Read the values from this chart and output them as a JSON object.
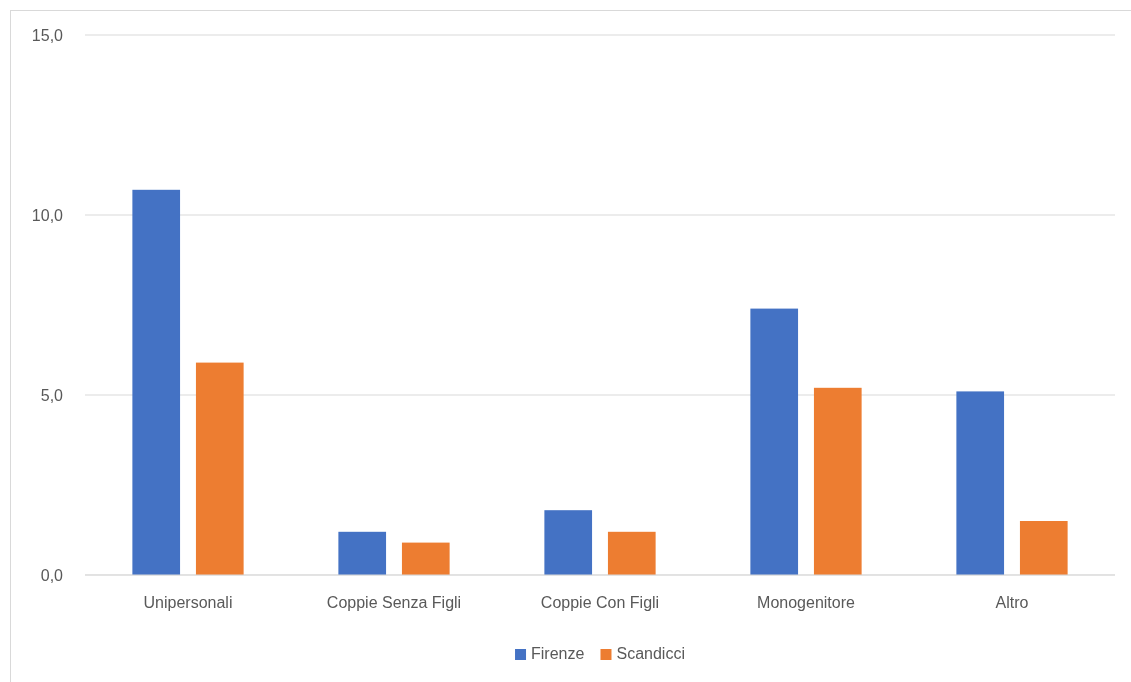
{
  "chart_data": {
    "type": "bar",
    "categories": [
      "Unipersonali",
      "Coppie Senza Figli",
      "Coppie Con Figli",
      "Monogenitore",
      "Altro"
    ],
    "series": [
      {
        "name": "Firenze",
        "color": "#4472c4",
        "values": [
          10.7,
          1.2,
          1.8,
          7.4,
          5.1
        ]
      },
      {
        "name": "Scandicci",
        "color": "#ed7d31",
        "values": [
          5.9,
          0.9,
          1.2,
          5.2,
          1.5
        ]
      }
    ],
    "ylim": [
      0,
      15
    ],
    "yticks": [
      {
        "value": 0,
        "label": "0,0"
      },
      {
        "value": 5,
        "label": "5,0"
      },
      {
        "value": 10,
        "label": "10,0"
      },
      {
        "value": 15,
        "label": "15,0"
      }
    ],
    "grid": "y",
    "legend": "bottom"
  }
}
